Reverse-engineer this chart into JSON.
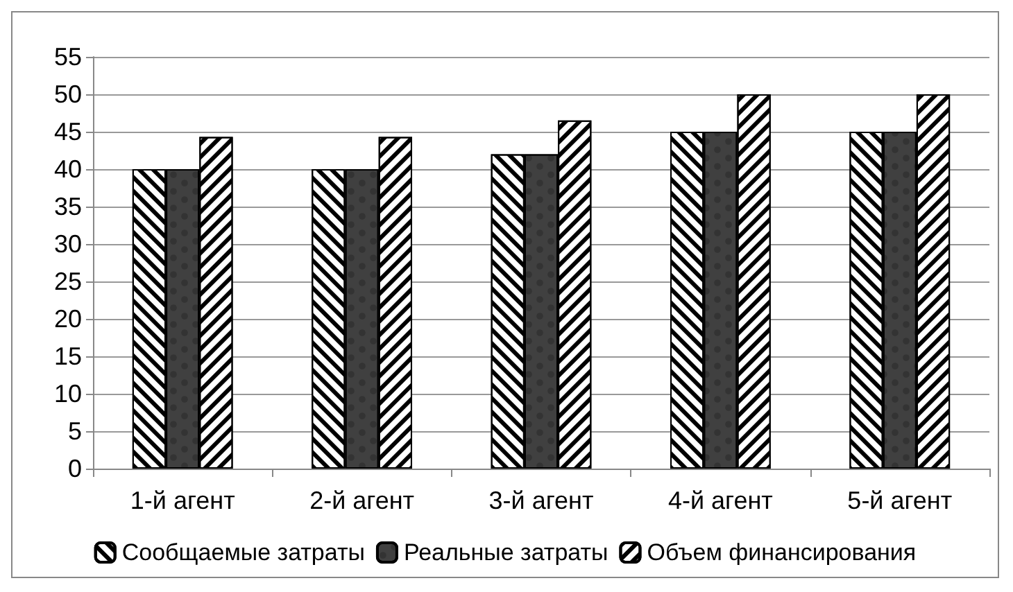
{
  "chart_data": {
    "type": "bar",
    "categories": [
      "1-й агент",
      "2-й агент",
      "3-й агент",
      "4-й агент",
      "5-й агент"
    ],
    "series": [
      {
        "name": "Сообщаемые затраты",
        "color": "#ffffff",
        "values": [
          40,
          40,
          42,
          45,
          45
        ]
      },
      {
        "name": "Реальные затраты",
        "color": "#404040",
        "values": [
          40,
          40,
          42,
          45,
          45
        ]
      },
      {
        "name": "Объем финансирования",
        "color": "#ffffff",
        "values": [
          44.3,
          44.3,
          46.5,
          50,
          50
        ]
      }
    ],
    "ylim": [
      0,
      55
    ],
    "yticks": [
      0,
      5,
      10,
      15,
      20,
      25,
      30,
      35,
      40,
      45,
      50,
      55
    ],
    "grid": "y",
    "legend": "bottom"
  }
}
